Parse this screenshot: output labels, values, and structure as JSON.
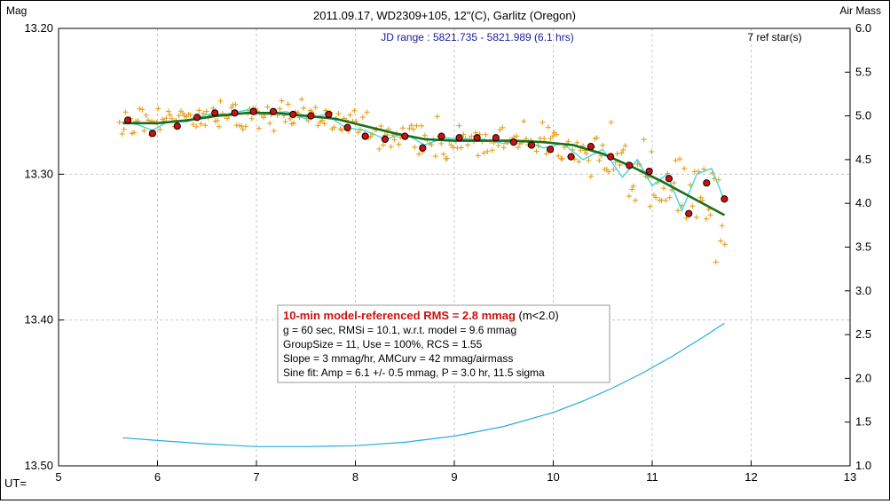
{
  "chart_data": {
    "type": "scatter",
    "title": "2011.09.17, WD2309+105, 12\"(C), Garlitz (Oregon)",
    "left_axis_label": "Mag",
    "right_axis_label": "Air Mass",
    "x_axis_label": "UT=",
    "jd_range": "JD range : 5821.735 - 5821.989 (6.1 hrs)",
    "ref_stars": "7 ref star(s)",
    "xlim": [
      5,
      13
    ],
    "ylim_mag": [
      13.2,
      13.5
    ],
    "ylim_airmass": [
      1.0,
      6.0
    ],
    "x_ticks": [
      "5",
      "6",
      "7",
      "8",
      "9",
      "10",
      "11",
      "12",
      "13"
    ],
    "y_ticks_left": [
      "13.20",
      "13.30",
      "13.40",
      "13.50"
    ],
    "y_ticks_right": [
      "6.0",
      "5.5",
      "5.0",
      "4.5",
      "4.0",
      "3.5",
      "3.0",
      "2.5",
      "2.0",
      "1.5",
      "1.0"
    ],
    "grid": true,
    "colors": {
      "raw_points": "#e8a020",
      "binned_points": "#d01010",
      "model_fit": "#1a6e1a",
      "sine_fit": "#40d8d8",
      "airmass": "#20b0e0",
      "jd_text": "#1a1aa0",
      "rms_text": "#cc1010"
    },
    "series": [
      {
        "key": "binned",
        "x": [
          5.7,
          5.95,
          6.2,
          6.4,
          6.58,
          6.78,
          6.97,
          7.17,
          7.37,
          7.55,
          7.73,
          7.92,
          8.1,
          8.3,
          8.5,
          8.68,
          8.87,
          9.05,
          9.23,
          9.42,
          9.6,
          9.78,
          9.97,
          10.18,
          10.38,
          10.58,
          10.77,
          10.97,
          11.17,
          11.37,
          11.55,
          11.73
        ],
        "y": [
          13.263,
          13.272,
          13.267,
          13.261,
          13.258,
          13.258,
          13.257,
          13.257,
          13.259,
          13.26,
          13.259,
          13.268,
          13.274,
          13.276,
          13.274,
          13.282,
          13.274,
          13.275,
          13.275,
          13.275,
          13.278,
          13.28,
          13.283,
          13.288,
          13.281,
          13.288,
          13.294,
          13.298,
          13.303,
          13.327,
          13.306,
          13.317
        ]
      },
      {
        "key": "model",
        "x": [
          5.65,
          6.0,
          6.3,
          6.6,
          6.9,
          7.2,
          7.5,
          7.8,
          8.1,
          8.4,
          8.7,
          9.0,
          9.3,
          9.6,
          9.9,
          10.2,
          10.5,
          10.8,
          11.1,
          11.4,
          11.73
        ],
        "y": [
          13.265,
          13.265,
          13.263,
          13.26,
          13.258,
          13.258,
          13.26,
          13.262,
          13.267,
          13.272,
          13.276,
          13.277,
          13.277,
          13.277,
          13.278,
          13.28,
          13.286,
          13.295,
          13.305,
          13.316,
          13.328
        ]
      },
      {
        "key": "sine",
        "x": [
          5.65,
          5.8,
          5.95,
          6.1,
          6.3,
          6.5,
          6.7,
          6.9,
          7.1,
          7.3,
          7.5,
          7.7,
          7.9,
          8.1,
          8.3,
          8.5,
          8.7,
          8.9,
          9.1,
          9.3,
          9.5,
          9.7,
          9.9,
          10.1,
          10.3,
          10.5,
          10.7,
          10.85,
          11.0,
          11.15,
          11.3,
          11.45,
          11.6,
          11.73
        ],
        "y": [
          13.264,
          13.266,
          13.27,
          13.264,
          13.264,
          13.259,
          13.259,
          13.256,
          13.259,
          13.257,
          13.262,
          13.259,
          13.268,
          13.27,
          13.276,
          13.272,
          13.28,
          13.275,
          13.276,
          13.276,
          13.279,
          13.277,
          13.282,
          13.279,
          13.29,
          13.283,
          13.302,
          13.29,
          13.308,
          13.3,
          13.325,
          13.3,
          13.296,
          13.318
        ]
      },
      {
        "key": "airmass",
        "x": [
          5.65,
          6.0,
          6.5,
          7.0,
          7.5,
          8.0,
          8.5,
          9.0,
          9.5,
          10.0,
          10.3,
          10.6,
          10.9,
          11.2,
          11.5,
          11.73
        ],
        "y": [
          1.32,
          1.29,
          1.25,
          1.22,
          1.22,
          1.23,
          1.27,
          1.34,
          1.45,
          1.61,
          1.74,
          1.89,
          2.06,
          2.25,
          2.46,
          2.63
        ]
      }
    ]
  },
  "stats_box": {
    "line1_main": "10-min model-referenced RMS = 2.8 mmag",
    "line1_suffix": " (m<2.0)",
    "line2": "g = 60 sec, RMSi = 10.1, w.r.t. model = 9.6 mmag",
    "line3": "GroupSize = 11, Use = 100%, RCS = 1.55",
    "line4": "Slope = 3 mmag/hr, AMCurv = 42 mmag/airmass",
    "line5": "Sine fit: Amp = 6.1 +/- 0.5 mmag, P = 3.0 hr, 11.5 sigma"
  }
}
